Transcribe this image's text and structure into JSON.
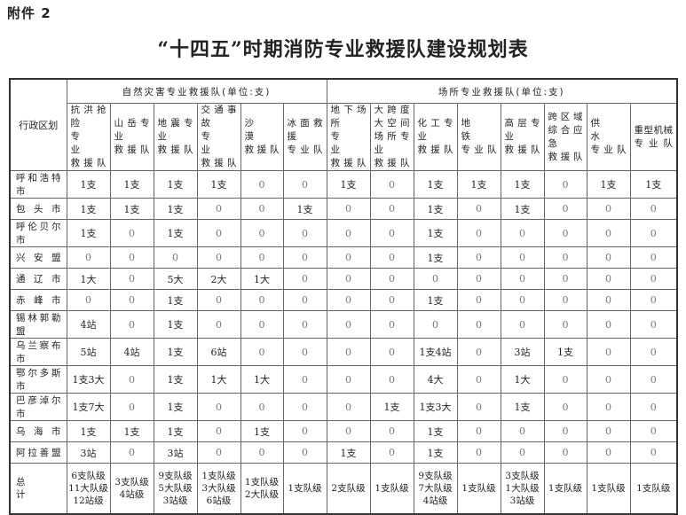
{
  "attachment_label": "附件 2",
  "title": "“十四五”时期消防专业救援队建设规划表",
  "table": {
    "region_header": "行政区划",
    "groups": [
      {
        "label": "自然灾害专业救援队(单位:支)",
        "span": 6
      },
      {
        "label": "场所专业救援队(单位:支)",
        "span": 8
      }
    ],
    "columns": [
      {
        "lines": [
          "抗洪抢险",
          "专　　业",
          "救 援 队"
        ]
      },
      {
        "lines": [
          "山岳专业",
          "救 援 队"
        ]
      },
      {
        "lines": [
          "地震专业",
          "救 援 队"
        ]
      },
      {
        "lines": [
          "交通事故",
          "专　　业",
          "救 援 队"
        ]
      },
      {
        "lines": [
          "沙　　漠",
          "救 援 队"
        ]
      },
      {
        "lines": [
          "冰面救援",
          "专 业 队"
        ]
      },
      {
        "lines": [
          "地下场所",
          "专　　业",
          "救 援 队"
        ]
      },
      {
        "lines": [
          "大 跨 度",
          "大 空 间",
          "场所专业",
          "救 援 队"
        ]
      },
      {
        "lines": [
          "化工专业",
          "救 援 队"
        ]
      },
      {
        "lines": [
          "地　　铁",
          "专 业 队"
        ]
      },
      {
        "lines": [
          "高层专业",
          "救 援 队"
        ]
      },
      {
        "lines": [
          "跨 区 域",
          "综合应急",
          "救 援 队"
        ]
      },
      {
        "lines": [
          "供　　水",
          "专 业 队"
        ]
      },
      {
        "lines": [
          "重型机械",
          "专 业 队"
        ]
      }
    ],
    "rows": [
      {
        "region": "呼和浩特市",
        "values": [
          "1支",
          "1支",
          "1支",
          "1支",
          "0",
          "0",
          "1支",
          "0",
          "1支",
          "1支",
          "1支",
          "0",
          "1支",
          "1支"
        ]
      },
      {
        "region": "包 头 市",
        "values": [
          "1支",
          "1支",
          "1支",
          "0",
          "0",
          "1支",
          "0",
          "0",
          "1支",
          "0",
          "1支",
          "0",
          "0",
          "0"
        ]
      },
      {
        "region": "呼伦贝尔市",
        "values": [
          "1支",
          "0",
          "1支",
          "0",
          "0",
          "0",
          "0",
          "0",
          "1支",
          "0",
          "0",
          "0",
          "0",
          "0"
        ]
      },
      {
        "region": "兴 安 盟",
        "values": [
          "0",
          "0",
          "0",
          "0",
          "0",
          "0",
          "0",
          "0",
          "1支",
          "0",
          "0",
          "0",
          "0",
          "0"
        ]
      },
      {
        "region": "通 辽 市",
        "values": [
          "1大",
          "0",
          "5大",
          "2大",
          "1大",
          "0",
          "0",
          "0",
          "0",
          "0",
          "0",
          "0",
          "0",
          "0"
        ]
      },
      {
        "region": "赤 峰 市",
        "values": [
          "0",
          "0",
          "1支",
          "0",
          "0",
          "0",
          "0",
          "0",
          "1支",
          "0",
          "0",
          "0",
          "0",
          "0"
        ]
      },
      {
        "region": "锡林郭勒盟",
        "values": [
          "4站",
          "0",
          "1支",
          "0",
          "0",
          "0",
          "0",
          "0",
          "0",
          "0",
          "0",
          "0",
          "0",
          "0"
        ]
      },
      {
        "region": "乌兰察布市",
        "values": [
          "5站",
          "4站",
          "1支",
          "6站",
          "0",
          "0",
          "0",
          "0",
          "1支4站",
          "0",
          "3站",
          "1支",
          "0",
          "0"
        ]
      },
      {
        "region": "鄂尔多斯市",
        "values": [
          "1支3大",
          "0",
          "1支",
          "1大",
          "1大",
          "0",
          "0",
          "0",
          "4大",
          "0",
          "1大",
          "0",
          "0",
          "0"
        ]
      },
      {
        "region": "巴彦淖尔市",
        "values": [
          "1支7大",
          "0",
          "1支",
          "0",
          "0",
          "0",
          "0",
          "1支",
          "1支3大",
          "0",
          "1支",
          "0",
          "0",
          "0"
        ]
      },
      {
        "region": "乌 海 市",
        "values": [
          "1支",
          "1支",
          "1支",
          "0",
          "1支",
          "0",
          "0",
          "0",
          "1支",
          "0",
          "0",
          "0",
          "0",
          "0"
        ]
      },
      {
        "region": "阿拉善盟",
        "values": [
          "3站",
          "0",
          "3站",
          "0",
          "0",
          "0",
          "1支",
          "0",
          "1支",
          "0",
          "0",
          "0",
          "0",
          "0"
        ]
      }
    ],
    "total": {
      "region": "总　　　计",
      "values": [
        [
          "6支队级",
          "11大队级",
          "12站级"
        ],
        [
          "3支队级",
          "4站级"
        ],
        [
          "9支队级",
          "5大队级",
          "3站级"
        ],
        [
          "1支队级",
          "3大队级",
          "6站级"
        ],
        [
          "1支队级",
          "2大队级"
        ],
        [
          "1支队级"
        ],
        [
          "2支队级"
        ],
        [
          "1支队级"
        ],
        [
          "9支队级",
          "7大队级",
          "4站级"
        ],
        [
          "1支队级"
        ],
        [
          "3支队级",
          "1大队级",
          "3站级"
        ],
        [
          "1支队级"
        ],
        [
          "1支队级"
        ],
        [
          "1支队级"
        ]
      ]
    }
  }
}
